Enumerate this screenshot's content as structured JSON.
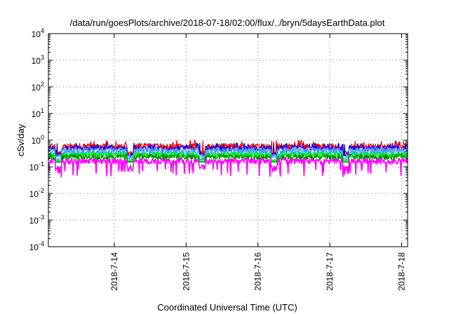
{
  "chart_data": {
    "type": "line",
    "title": "/data/run/goesPlots/archive/2018-07-18/02:00/flux/../bryn/5daysEarthData.plot",
    "xlabel": "Coordinated Universal Time (UTC)",
    "ylabel": "cSv/day",
    "y_scale": "log",
    "ylim": [
      0.0001,
      10000
    ],
    "y_ticks": [
      {
        "value": 0.0001,
        "base": "10",
        "exp": "-4"
      },
      {
        "value": 0.001,
        "base": "10",
        "exp": "-3"
      },
      {
        "value": 0.01,
        "base": "10",
        "exp": "-2"
      },
      {
        "value": 0.1,
        "base": "10",
        "exp": "-1"
      },
      {
        "value": 1,
        "base": "10",
        "exp": "0"
      },
      {
        "value": 10,
        "base": "10",
        "exp": "1"
      },
      {
        "value": 100,
        "base": "10",
        "exp": "2"
      },
      {
        "value": 1000,
        "base": "10",
        "exp": "3"
      },
      {
        "value": 10000,
        "base": "10",
        "exp": "4"
      }
    ],
    "xlim": [
      "2018-07-13 02:00",
      "2018-07-18 02:00"
    ],
    "x_ticks": [
      "2018-7-14",
      "2018-7-15",
      "2018-7-16",
      "2018-7-17",
      "2018-7-18"
    ],
    "grid": true,
    "series": [
      {
        "color": "#ff0000",
        "typical_value": 0.6,
        "min": 0.3,
        "max": 1.0
      },
      {
        "color": "#0000ff",
        "typical_value": 0.5,
        "min": 0.25,
        "max": 0.8
      },
      {
        "color": "#4da6ff",
        "typical_value": 0.42,
        "min": 0.2,
        "max": 0.6
      },
      {
        "color": "#00c0a0",
        "typical_value": 0.32,
        "min": 0.18,
        "max": 0.45
      },
      {
        "color": "#00ff00",
        "typical_value": 0.28,
        "min": 0.16,
        "max": 0.38
      },
      {
        "color": "#008000",
        "typical_value": 0.24,
        "min": 0.15,
        "max": 0.32
      },
      {
        "color": "#ff00ff",
        "typical_value": 0.17,
        "min": 0.04,
        "max": 0.3
      }
    ]
  }
}
